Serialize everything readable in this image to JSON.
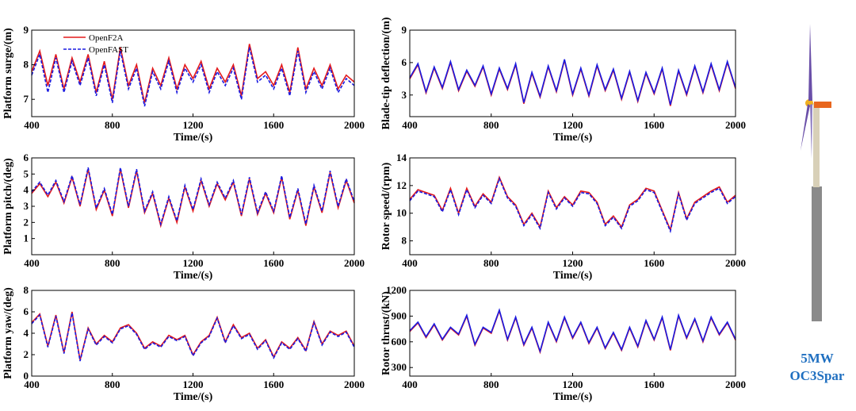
{
  "chart_data": [
    {
      "type": "line",
      "x_label": "Time/(s)",
      "y_label": "Platform surge/(m)",
      "x": [
        400,
        440,
        480,
        520,
        560,
        600,
        640,
        680,
        720,
        760,
        800,
        840,
        880,
        920,
        960,
        1000,
        1040,
        1080,
        1120,
        1160,
        1200,
        1240,
        1280,
        1320,
        1360,
        1400,
        1440,
        1480,
        1520,
        1560,
        1600,
        1640,
        1680,
        1720,
        1760,
        1800,
        1840,
        1880,
        1920,
        1960,
        2000
      ],
      "xlim": [
        400,
        2000
      ],
      "xticks": [
        400,
        800,
        1200,
        1600,
        2000
      ],
      "ylim": [
        6.5,
        9
      ],
      "yticks": [
        7,
        8,
        9
      ],
      "series": [
        {
          "name": "OpenF2A",
          "color": "#e31a1c",
          "dashed": false,
          "values": [
            7.8,
            8.4,
            7.4,
            8.3,
            7.3,
            8.2,
            7.5,
            8.3,
            7.2,
            8.1,
            7.0,
            8.5,
            7.4,
            8.0,
            6.9,
            7.9,
            7.4,
            8.2,
            7.3,
            8.0,
            7.6,
            8.1,
            7.3,
            7.9,
            7.5,
            8.0,
            7.1,
            8.6,
            7.6,
            7.8,
            7.4,
            8.0,
            7.2,
            8.5,
            7.3,
            7.9,
            7.4,
            8.0,
            7.3,
            7.7,
            7.5
          ]
        },
        {
          "name": "OpenFAST",
          "color": "#1a1ae0",
          "dashed": true,
          "values": [
            7.7,
            8.3,
            7.2,
            8.2,
            7.2,
            8.1,
            7.4,
            8.2,
            7.1,
            8.0,
            6.9,
            8.4,
            7.3,
            7.9,
            6.8,
            7.8,
            7.3,
            8.1,
            7.2,
            7.9,
            7.5,
            8.0,
            7.2,
            7.8,
            7.4,
            7.9,
            7.0,
            8.5,
            7.5,
            7.7,
            7.3,
            7.9,
            7.1,
            8.4,
            7.2,
            7.8,
            7.3,
            7.9,
            7.2,
            7.6,
            7.4
          ]
        }
      ]
    },
    {
      "type": "line",
      "x_label": "Time/(s)",
      "y_label": "Blade-tip deflection/(m)",
      "x": [
        400,
        440,
        480,
        520,
        560,
        600,
        640,
        680,
        720,
        760,
        800,
        840,
        880,
        920,
        960,
        1000,
        1040,
        1080,
        1120,
        1160,
        1200,
        1240,
        1280,
        1320,
        1360,
        1400,
        1440,
        1480,
        1520,
        1560,
        1600,
        1640,
        1680,
        1720,
        1760,
        1800,
        1840,
        1880,
        1920,
        1960,
        2000
      ],
      "xlim": [
        400,
        2000
      ],
      "xticks": [
        400,
        800,
        1200,
        1600,
        2000
      ],
      "ylim": [
        1,
        9
      ],
      "yticks": [
        3,
        6,
        9
      ],
      "series": [
        {
          "color": "#e31a1c",
          "dashed": false,
          "values": [
            4.5,
            5.8,
            3.2,
            5.5,
            3.6,
            6.0,
            3.4,
            5.2,
            3.8,
            5.6,
            3.0,
            5.4,
            3.5,
            5.8,
            2.2,
            5.0,
            2.8,
            5.6,
            3.3,
            6.2,
            3.0,
            5.4,
            2.9,
            5.7,
            3.4,
            5.3,
            2.6,
            5.1,
            2.4,
            5.0,
            3.1,
            5.4,
            2.0,
            5.2,
            3.0,
            5.6,
            3.2,
            5.8,
            3.4,
            6.0,
            3.6
          ]
        },
        {
          "color": "#1a1ae0",
          "dashed": false,
          "values": [
            4.6,
            5.9,
            3.3,
            5.6,
            3.7,
            6.1,
            3.5,
            5.3,
            3.9,
            5.7,
            3.1,
            5.5,
            3.6,
            5.9,
            2.3,
            5.1,
            2.9,
            5.7,
            3.4,
            6.3,
            3.1,
            5.5,
            3.0,
            5.8,
            3.5,
            5.4,
            2.7,
            5.2,
            2.5,
            5.1,
            3.2,
            5.5,
            2.1,
            5.3,
            3.1,
            5.7,
            3.3,
            5.9,
            3.5,
            6.1,
            3.7
          ]
        }
      ]
    },
    {
      "type": "line",
      "x_label": "Time/(s)",
      "y_label": "Platform pitch/(deg)",
      "x": [
        400,
        440,
        480,
        520,
        560,
        600,
        640,
        680,
        720,
        760,
        800,
        840,
        880,
        920,
        960,
        1000,
        1040,
        1080,
        1120,
        1160,
        1200,
        1240,
        1280,
        1320,
        1360,
        1400,
        1440,
        1480,
        1520,
        1560,
        1600,
        1640,
        1680,
        1720,
        1760,
        1800,
        1840,
        1880,
        1920,
        1960,
        2000
      ],
      "xlim": [
        400,
        2000
      ],
      "xticks": [
        400,
        800,
        1200,
        1600,
        2000
      ],
      "ylim": [
        0,
        6
      ],
      "yticks": [
        1,
        2,
        3,
        4,
        5,
        6
      ],
      "series": [
        {
          "color": "#e31a1c",
          "dashed": false,
          "values": [
            3.8,
            4.4,
            3.6,
            4.5,
            3.2,
            4.8,
            3.0,
            5.3,
            2.8,
            4.0,
            2.4,
            5.3,
            2.9,
            5.2,
            2.6,
            3.8,
            1.8,
            3.5,
            2.0,
            4.2,
            2.7,
            4.6,
            3.0,
            4.4,
            3.4,
            4.5,
            2.4,
            4.7,
            2.5,
            3.8,
            2.6,
            4.8,
            2.2,
            4.0,
            1.8,
            4.2,
            2.6,
            5.1,
            2.9,
            4.6,
            3.2
          ]
        },
        {
          "color": "#1a1ae0",
          "dashed": true,
          "values": [
            3.9,
            4.5,
            3.7,
            4.6,
            3.3,
            4.9,
            3.1,
            5.4,
            2.9,
            4.1,
            2.5,
            5.4,
            3.0,
            5.3,
            2.7,
            3.9,
            1.9,
            3.6,
            2.1,
            4.3,
            2.8,
            4.7,
            3.1,
            4.5,
            3.5,
            4.6,
            2.5,
            4.8,
            2.6,
            3.9,
            2.7,
            4.9,
            2.3,
            4.1,
            1.9,
            4.3,
            2.7,
            5.2,
            3.0,
            4.7,
            3.3
          ]
        }
      ]
    },
    {
      "type": "line",
      "x_label": "Time/(s)",
      "y_label": "Rotor speed/(rpm)",
      "x": [
        400,
        440,
        480,
        520,
        560,
        600,
        640,
        680,
        720,
        760,
        800,
        840,
        880,
        920,
        960,
        1000,
        1040,
        1080,
        1120,
        1160,
        1200,
        1240,
        1280,
        1320,
        1360,
        1400,
        1440,
        1480,
        1520,
        1560,
        1600,
        1640,
        1680,
        1720,
        1760,
        1800,
        1840,
        1880,
        1920,
        1960,
        2000
      ],
      "xlim": [
        400,
        2000
      ],
      "xticks": [
        400,
        800,
        1200,
        1600,
        2000
      ],
      "ylim": [
        7,
        14
      ],
      "yticks": [
        8,
        10,
        12,
        14
      ],
      "series": [
        {
          "color": "#e31a1c",
          "dashed": false,
          "values": [
            11.0,
            11.7,
            11.5,
            11.3,
            10.2,
            11.8,
            10.0,
            11.8,
            10.5,
            11.4,
            10.8,
            12.6,
            11.2,
            10.6,
            9.2,
            10.0,
            9.0,
            11.6,
            10.4,
            11.2,
            10.6,
            11.6,
            11.5,
            10.8,
            9.2,
            9.8,
            9.0,
            10.6,
            11.0,
            11.8,
            11.6,
            10.2,
            8.8,
            11.5,
            9.6,
            10.8,
            11.2,
            11.6,
            11.9,
            10.8,
            11.3
          ]
        },
        {
          "color": "#1a1ae0",
          "dashed": true,
          "values": [
            10.9,
            11.6,
            11.4,
            11.2,
            10.1,
            11.7,
            9.9,
            11.7,
            10.4,
            11.3,
            10.7,
            12.5,
            11.1,
            10.5,
            9.1,
            9.9,
            8.9,
            11.5,
            10.3,
            11.1,
            10.5,
            11.5,
            11.4,
            10.7,
            9.1,
            9.7,
            8.9,
            10.5,
            10.9,
            11.7,
            11.5,
            10.1,
            8.7,
            11.4,
            9.5,
            10.7,
            11.1,
            11.5,
            11.8,
            10.7,
            11.2
          ]
        }
      ]
    },
    {
      "type": "line",
      "x_label": "Time/(s)",
      "y_label": "Platform yaw/(deg)",
      "x": [
        400,
        440,
        480,
        520,
        560,
        600,
        640,
        680,
        720,
        760,
        800,
        840,
        880,
        920,
        960,
        1000,
        1040,
        1080,
        1120,
        1160,
        1200,
        1240,
        1280,
        1320,
        1360,
        1400,
        1440,
        1480,
        1520,
        1560,
        1600,
        1640,
        1680,
        1720,
        1760,
        1800,
        1840,
        1880,
        1920,
        1960,
        2000
      ],
      "xlim": [
        400,
        2000
      ],
      "xticks": [
        400,
        800,
        1200,
        1600,
        2000
      ],
      "ylim": [
        0,
        8
      ],
      "yticks": [
        0,
        2,
        4,
        6,
        8
      ],
      "series": [
        {
          "color": "#e31a1c",
          "dashed": false,
          "values": [
            5.0,
            5.8,
            2.8,
            5.7,
            2.2,
            6.0,
            1.5,
            4.5,
            3.0,
            3.8,
            3.2,
            4.5,
            4.8,
            4.0,
            2.6,
            3.2,
            2.8,
            3.8,
            3.4,
            3.8,
            2.0,
            3.2,
            3.8,
            5.5,
            3.2,
            4.8,
            3.6,
            4.0,
            2.6,
            3.4,
            1.8,
            3.2,
            2.6,
            3.6,
            2.4,
            5.1,
            3.0,
            4.2,
            3.8,
            4.2,
            2.8
          ]
        },
        {
          "color": "#1a1ae0",
          "dashed": true,
          "values": [
            4.9,
            5.7,
            2.7,
            5.6,
            2.1,
            5.9,
            1.4,
            4.4,
            2.9,
            3.7,
            3.1,
            4.4,
            4.7,
            3.9,
            2.5,
            3.1,
            2.7,
            3.7,
            3.3,
            3.7,
            1.9,
            3.1,
            3.7,
            5.4,
            3.1,
            4.7,
            3.5,
            3.9,
            2.5,
            3.3,
            1.7,
            3.1,
            2.5,
            3.5,
            2.3,
            5.0,
            2.9,
            4.1,
            3.7,
            4.1,
            2.7
          ]
        }
      ]
    },
    {
      "type": "line",
      "x_label": "Time/(s)",
      "y_label": "Rotor thrust/(kN)",
      "x": [
        400,
        440,
        480,
        520,
        560,
        600,
        640,
        680,
        720,
        760,
        800,
        840,
        880,
        920,
        960,
        1000,
        1040,
        1080,
        1120,
        1160,
        1200,
        1240,
        1280,
        1320,
        1360,
        1400,
        1440,
        1480,
        1520,
        1560,
        1600,
        1640,
        1680,
        1720,
        1760,
        1800,
        1840,
        1880,
        1920,
        1960,
        2000
      ],
      "xlim": [
        400,
        2000
      ],
      "xticks": [
        400,
        800,
        1200,
        1600,
        2000
      ],
      "ylim": [
        200,
        1200
      ],
      "yticks": [
        300,
        600,
        900,
        1200
      ],
      "series": [
        {
          "color": "#e31a1c",
          "dashed": false,
          "values": [
            720,
            820,
            650,
            800,
            620,
            760,
            680,
            900,
            560,
            760,
            700,
            960,
            620,
            880,
            560,
            760,
            480,
            820,
            600,
            880,
            640,
            820,
            580,
            760,
            520,
            700,
            500,
            760,
            540,
            840,
            620,
            880,
            500,
            900,
            640,
            860,
            600,
            880,
            680,
            820,
            620
          ]
        },
        {
          "color": "#1a1ae0",
          "dashed": false,
          "values": [
            730,
            830,
            660,
            810,
            630,
            770,
            690,
            910,
            570,
            770,
            710,
            970,
            630,
            890,
            570,
            770,
            490,
            830,
            610,
            890,
            650,
            830,
            590,
            770,
            530,
            710,
            510,
            770,
            550,
            850,
            630,
            890,
            510,
            910,
            650,
            870,
            610,
            890,
            690,
            830,
            630
          ]
        }
      ]
    }
  ],
  "caption": [
    "5MW",
    "OC3Spar"
  ]
}
